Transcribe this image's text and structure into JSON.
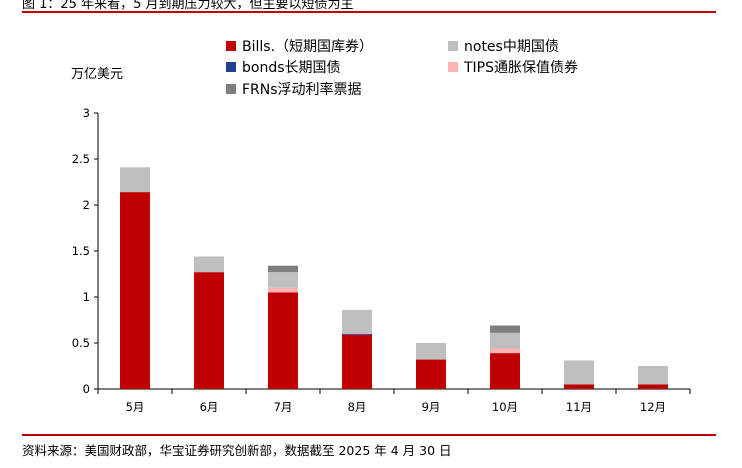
{
  "header": {
    "caption": "图 1：25 年来看，5 月到期压力较大，但主要以短债为主"
  },
  "footer": {
    "source": "资料来源：美国财政部，华宝证券研究创新部，数据截至 2025 年 4 月 30 日"
  },
  "chart_data": {
    "type": "bar",
    "stacked": true,
    "title": "",
    "xlabel": "",
    "ylabel": "万亿美元",
    "ylim": [
      0,
      3
    ],
    "yticks": [
      "0",
      "0.5",
      "1",
      "1.5",
      "2",
      "2.5",
      "3"
    ],
    "categories": [
      "5月",
      "6月",
      "7月",
      "8月",
      "9月",
      "10月",
      "11月",
      "12月"
    ],
    "grid": false,
    "legend_position": "top",
    "series": [
      {
        "name": "Bills.（短期国库券）",
        "color": "#c00000",
        "values": [
          2.14,
          1.27,
          1.05,
          0.59,
          0.32,
          0.39,
          0.05,
          0.05
        ]
      },
      {
        "name": "bonds长期国债",
        "color": "#1f3f8f",
        "values": [
          0,
          0,
          0,
          0.01,
          0,
          0,
          0,
          0
        ]
      },
      {
        "name": "TIPS通胀保值债券",
        "color": "#ffb3b3",
        "values": [
          0,
          0,
          0.05,
          0,
          0,
          0.05,
          0,
          0
        ]
      },
      {
        "name": "notes中期国债",
        "color": "#bfbfbf",
        "values": [
          0.27,
          0.17,
          0.17,
          0.26,
          0.18,
          0.17,
          0.26,
          0.2
        ]
      },
      {
        "name": "FRNs浮动利率票据",
        "color": "#7f7f7f",
        "values": [
          0,
          0,
          0.07,
          0,
          0,
          0.08,
          0,
          0
        ]
      }
    ],
    "legend_order": [
      "Bills.（短期国库券）",
      "notes中期国债",
      "bonds长期国债",
      "TIPS通胀保值债券",
      "FRNs浮动利率票据"
    ]
  }
}
